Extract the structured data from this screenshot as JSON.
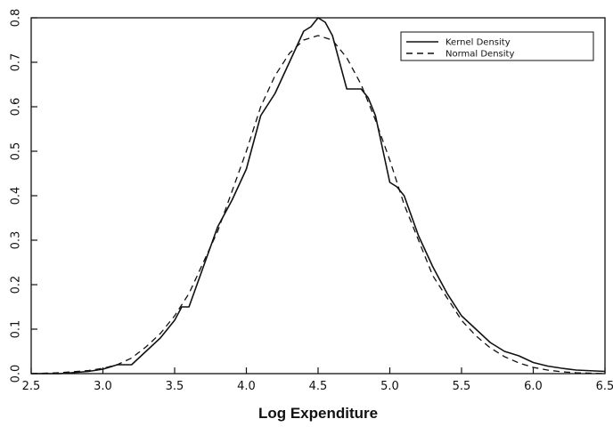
{
  "chart_data": {
    "type": "line",
    "title": "",
    "xlabel": "Log Expenditure",
    "ylabel": "",
    "xlim": [
      2.5,
      6.5
    ],
    "ylim": [
      0.0,
      0.8
    ],
    "grid": false,
    "legend_position": "top-right",
    "x_ticks": [
      "2.5",
      "3.0",
      "3.5",
      "4.0",
      "4.5",
      "5.0",
      "5.5",
      "6.0",
      "6.5"
    ],
    "y_ticks": [
      "0.0",
      "0.1",
      "0.2",
      "0.3",
      "0.4",
      "0.5",
      "0.6",
      "0.7",
      "0.8"
    ],
    "series": [
      {
        "name": "Kernel Density",
        "style": "solid",
        "x": [
          2.5,
          2.7,
          2.9,
          3.0,
          3.1,
          3.2,
          3.3,
          3.4,
          3.5,
          3.55,
          3.6,
          3.7,
          3.8,
          3.9,
          4.0,
          4.1,
          4.2,
          4.3,
          4.4,
          4.45,
          4.5,
          4.55,
          4.6,
          4.7,
          4.8,
          4.85,
          4.9,
          5.0,
          5.05,
          5.1,
          5.2,
          5.3,
          5.4,
          5.5,
          5.6,
          5.7,
          5.8,
          5.9,
          6.0,
          6.1,
          6.2,
          6.3,
          6.5
        ],
        "y": [
          0.0,
          0.0,
          0.005,
          0.01,
          0.02,
          0.02,
          0.05,
          0.08,
          0.12,
          0.15,
          0.15,
          0.24,
          0.33,
          0.39,
          0.46,
          0.58,
          0.63,
          0.7,
          0.77,
          0.78,
          0.8,
          0.79,
          0.76,
          0.64,
          0.64,
          0.62,
          0.58,
          0.43,
          0.42,
          0.4,
          0.31,
          0.24,
          0.18,
          0.13,
          0.1,
          0.07,
          0.05,
          0.04,
          0.025,
          0.017,
          0.012,
          0.008,
          0.005
        ]
      },
      {
        "name": "Normal Density",
        "style": "dashed",
        "x": [
          2.5,
          2.7,
          2.9,
          3.0,
          3.1,
          3.2,
          3.3,
          3.4,
          3.5,
          3.6,
          3.7,
          3.8,
          3.9,
          4.0,
          4.1,
          4.2,
          4.3,
          4.4,
          4.5,
          4.6,
          4.7,
          4.8,
          4.9,
          5.0,
          5.1,
          5.2,
          5.3,
          5.4,
          5.5,
          5.6,
          5.7,
          5.8,
          5.9,
          6.0,
          6.1,
          6.2,
          6.3,
          6.5
        ],
        "y": [
          0.0,
          0.002,
          0.007,
          0.012,
          0.02,
          0.035,
          0.06,
          0.09,
          0.13,
          0.18,
          0.25,
          0.32,
          0.41,
          0.5,
          0.6,
          0.67,
          0.72,
          0.75,
          0.76,
          0.75,
          0.71,
          0.65,
          0.57,
          0.48,
          0.38,
          0.3,
          0.22,
          0.17,
          0.12,
          0.085,
          0.058,
          0.038,
          0.024,
          0.014,
          0.008,
          0.004,
          0.002,
          0.0
        ]
      }
    ]
  }
}
